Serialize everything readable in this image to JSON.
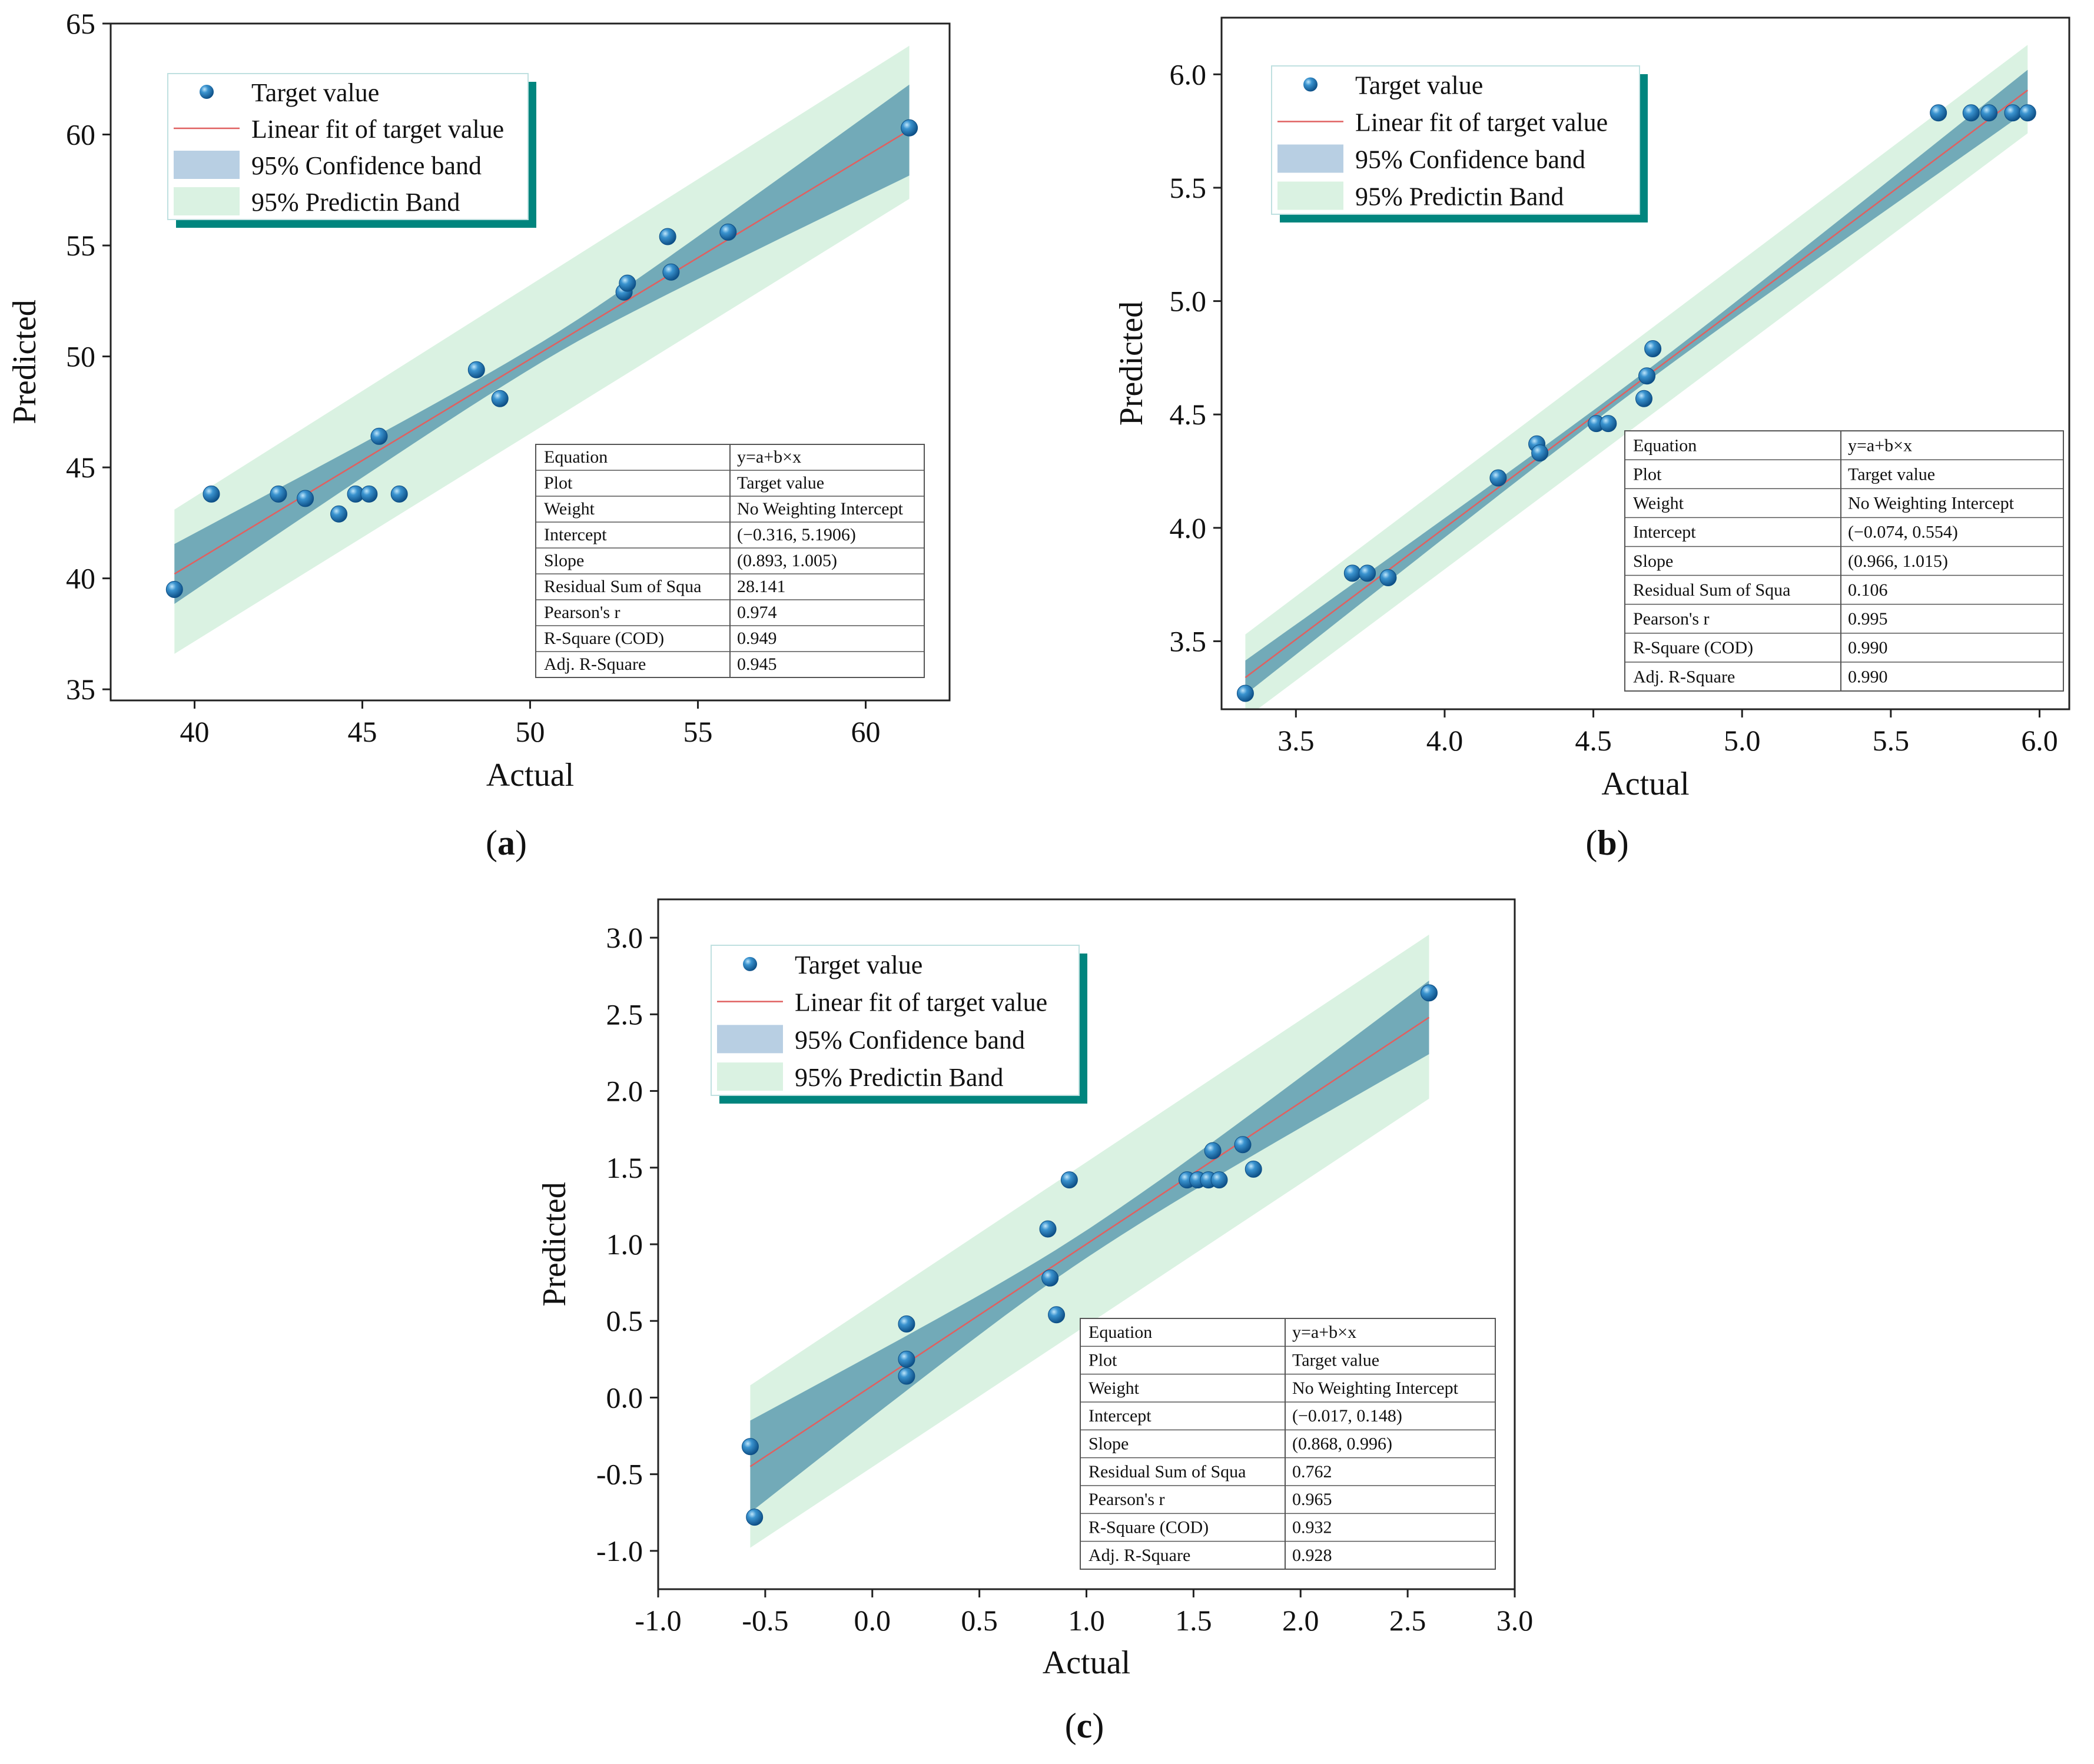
{
  "figure": {
    "panel_labels": [
      "(a)",
      "(b)",
      "(c)"
    ],
    "colors": {
      "point": "#1f6fb2",
      "point_highlight": "#9cd0f0",
      "fit_line": "#e06060",
      "confidence_band": "#5f9db0",
      "prediction_band": "#daf2e2",
      "legend_shadow": "#00857e"
    }
  },
  "chart_data": [
    {
      "type": "scatter",
      "panel": "(a)",
      "xlabel": "Actual",
      "ylabel": "Predicted",
      "xlim": [
        37.5,
        62.5
      ],
      "ylim": [
        34.5,
        65
      ],
      "xticks": [
        40,
        45,
        50,
        55,
        60
      ],
      "yticks": [
        35,
        40,
        45,
        50,
        55,
        60,
        65
      ],
      "points": [
        [
          39.4,
          39.5
        ],
        [
          40.5,
          43.8
        ],
        [
          42.5,
          43.8
        ],
        [
          43.3,
          43.6
        ],
        [
          44.3,
          42.9
        ],
        [
          44.8,
          43.8
        ],
        [
          45.2,
          43.8
        ],
        [
          45.5,
          46.4
        ],
        [
          46.1,
          43.8
        ],
        [
          48.4,
          49.4
        ],
        [
          49.1,
          48.1
        ],
        [
          52.8,
          52.9
        ],
        [
          52.9,
          53.3
        ],
        [
          54.1,
          55.4
        ],
        [
          54.2,
          53.8
        ],
        [
          55.9,
          55.6
        ],
        [
          61.3,
          60.3
        ]
      ],
      "fit": {
        "x_range": [
          39.4,
          61.3
        ],
        "y_range": [
          40.2,
          60.2
        ]
      },
      "confidence_band": {
        "lower": [
          38.7,
          58.2
        ],
        "upper": [
          41.4,
          62.3
        ],
        "mid_halfwidth": 0.45
      },
      "prediction_band": {
        "lower": [
          36.6,
          57.1
        ],
        "upper": [
          43.1,
          64.0
        ]
      },
      "legend": [
        "Target value",
        "Linear fit of target value",
        "95% Confidence band",
        "95% Predictin Band"
      ],
      "stats_table": [
        [
          "Equation",
          "y=a+b×x"
        ],
        [
          "Plot",
          "Target value"
        ],
        [
          "Weight",
          "No Weighting Intercept"
        ],
        [
          "Intercept",
          "(−0.316, 5.1906)"
        ],
        [
          "Slope",
          "(0.893, 1.005)"
        ],
        [
          "Residual Sum of Squa",
          "28.141"
        ],
        [
          "Pearson's r",
          "0.974"
        ],
        [
          "R-Square (COD)",
          "0.949"
        ],
        [
          "Adj. R-Square",
          "0.945"
        ]
      ]
    },
    {
      "type": "scatter",
      "panel": "(b)",
      "xlabel": "Actual",
      "ylabel": "Predicted",
      "xlim": [
        3.25,
        6.1
      ],
      "ylim": [
        3.2,
        6.25
      ],
      "xticks": [
        3.5,
        4.0,
        4.5,
        5.0,
        5.5,
        6.0
      ],
      "yticks": [
        3.5,
        4.0,
        4.5,
        5.0,
        5.5,
        6.0
      ],
      "points": [
        [
          3.33,
          3.27
        ],
        [
          3.69,
          3.8
        ],
        [
          3.74,
          3.8
        ],
        [
          3.81,
          3.78
        ],
        [
          4.18,
          4.22
        ],
        [
          4.31,
          4.37
        ],
        [
          4.32,
          4.33
        ],
        [
          4.51,
          4.46
        ],
        [
          4.55,
          4.46
        ],
        [
          4.67,
          4.57
        ],
        [
          4.68,
          4.67
        ],
        [
          4.7,
          4.79
        ],
        [
          5.66,
          5.83
        ],
        [
          5.77,
          5.83
        ],
        [
          5.83,
          5.83
        ],
        [
          5.91,
          5.83
        ],
        [
          5.96,
          5.83
        ]
      ],
      "fit": {
        "x_range": [
          3.33,
          5.96
        ],
        "y_range": [
          3.34,
          5.93
        ]
      },
      "confidence_band": {
        "lower": [
          3.27,
          5.84
        ],
        "upper": [
          3.42,
          6.02
        ],
        "mid_halfwidth": 0.025
      },
      "prediction_band": {
        "lower": [
          3.16,
          5.74
        ],
        "upper": [
          3.53,
          6.13
        ]
      },
      "legend": [
        "Target value",
        "Linear fit of target value",
        "95% Confidence band",
        "95% Predictin Band"
      ],
      "stats_table": [
        [
          "Equation",
          "y=a+b×x"
        ],
        [
          "Plot",
          "Target value"
        ],
        [
          "Weight",
          "No Weighting Intercept"
        ],
        [
          "Intercept",
          "(−0.074, 0.554)"
        ],
        [
          "Slope",
          "(0.966, 1.015)"
        ],
        [
          "Residual Sum of Squa",
          "0.106"
        ],
        [
          "Pearson's r",
          "0.995"
        ],
        [
          "R-Square (COD)",
          "0.990"
        ],
        [
          "Adj. R-Square",
          "0.990"
        ]
      ]
    },
    {
      "type": "scatter",
      "panel": "(c)",
      "xlabel": "Actual",
      "ylabel": "Predicted",
      "xlim": [
        -1.0,
        3.0
      ],
      "ylim": [
        -1.25,
        3.25
      ],
      "xticks": [
        -1.0,
        -0.5,
        0.0,
        0.5,
        1.0,
        1.5,
        2.0,
        2.5,
        3.0
      ],
      "yticks": [
        -1.0,
        -0.5,
        0.0,
        0.5,
        1.0,
        1.5,
        2.0,
        2.5,
        3.0
      ],
      "points": [
        [
          -0.57,
          -0.32
        ],
        [
          -0.55,
          -0.78
        ],
        [
          0.16,
          0.48
        ],
        [
          0.16,
          0.25
        ],
        [
          0.16,
          0.14
        ],
        [
          0.82,
          1.1
        ],
        [
          0.83,
          0.78
        ],
        [
          0.86,
          0.54
        ],
        [
          0.92,
          1.42
        ],
        [
          1.47,
          1.42
        ],
        [
          1.52,
          1.42
        ],
        [
          1.57,
          1.42
        ],
        [
          1.59,
          1.61
        ],
        [
          1.62,
          1.42
        ],
        [
          1.73,
          1.65
        ],
        [
          1.78,
          1.49
        ],
        [
          2.6,
          2.64
        ]
      ],
      "fit": {
        "x_range": [
          -0.57,
          2.6
        ],
        "y_range": [
          -0.45,
          2.48
        ]
      },
      "confidence_band": {
        "lower": [
          -0.75,
          2.24
        ],
        "upper": [
          -0.15,
          2.72
        ],
        "mid_halfwidth": 0.09
      },
      "prediction_band": {
        "lower": [
          -0.98,
          1.95
        ],
        "upper": [
          0.08,
          3.02
        ]
      },
      "legend": [
        "Target value",
        "Linear fit of target value",
        "95% Confidence band",
        "95% Predictin Band"
      ],
      "stats_table": [
        [
          "Equation",
          "y=a+b×x"
        ],
        [
          "Plot",
          "Target value"
        ],
        [
          "Weight",
          "No Weighting Intercept"
        ],
        [
          "Intercept",
          "(−0.017, 0.148)"
        ],
        [
          "Slope",
          "(0.868, 0.996)"
        ],
        [
          "Residual Sum of Squa",
          "0.762"
        ],
        [
          "Pearson's r",
          "0.965"
        ],
        [
          "R-Square (COD)",
          "0.932"
        ],
        [
          "Adj. R-Square",
          "0.928"
        ]
      ]
    }
  ]
}
